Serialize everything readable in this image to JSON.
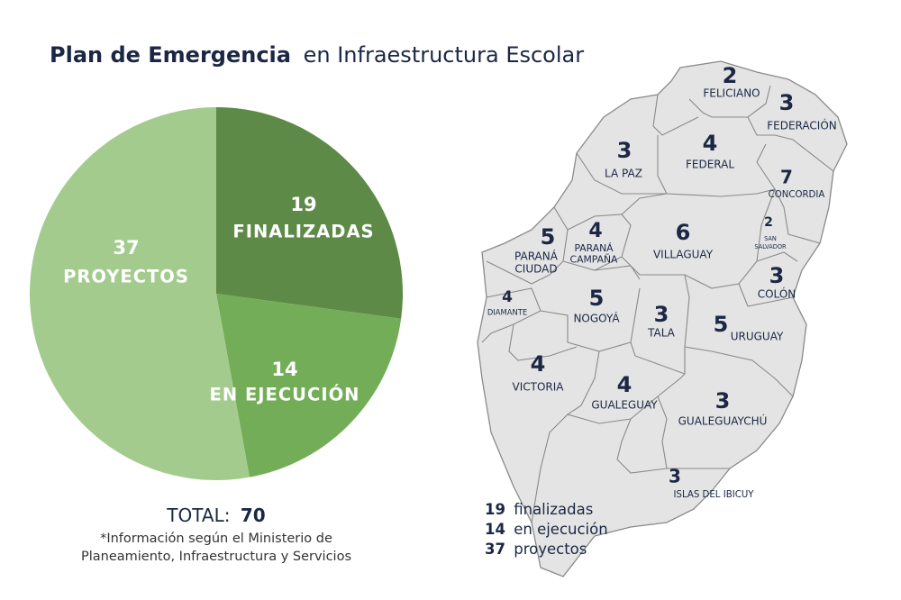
{
  "title": {
    "bold": "Plan de Emergencia",
    "rest": "en Infraestructura Escolar"
  },
  "chart_data": {
    "type": "pie",
    "categories": [
      "FINALIZADAS",
      "EN EJECUCIÓN",
      "PROYECTOS"
    ],
    "values": [
      19,
      14,
      37
    ],
    "colors": [
      "#5e8a48",
      "#74ad58",
      "#a4cb8e"
    ]
  },
  "total": {
    "label": "TOTAL:",
    "value": 70
  },
  "footnote": [
    "*Información según el Ministerio de",
    "Planeamiento, Infraestructura y Servicios"
  ],
  "summary": [
    "finalizadas",
    "en ejecución",
    "proyectos"
  ],
  "map": {
    "departments": [
      {
        "name": [
          "FELICIANO"
        ],
        "count": 2
      },
      {
        "name": [
          "FEDERACIÓN"
        ],
        "count": 3
      },
      {
        "name": [
          "LA PAZ"
        ],
        "count": 3
      },
      {
        "name": [
          "FEDERAL"
        ],
        "count": 4
      },
      {
        "name": [
          "CONCORDIA"
        ],
        "count": 7
      },
      {
        "name": [
          "PARANÁ",
          "CIUDAD"
        ],
        "count": 5
      },
      {
        "name": [
          "PARANÁ",
          "CAMPAÑA"
        ],
        "count": 4
      },
      {
        "name": [
          "VILLAGUAY"
        ],
        "count": 6
      },
      {
        "name": [
          "SAN",
          "SALVADOR"
        ],
        "count": 2
      },
      {
        "name": [
          "COLÓN"
        ],
        "count": 3
      },
      {
        "name": [
          "DIAMANTE"
        ],
        "count": 4
      },
      {
        "name": [
          "NOGOYÁ"
        ],
        "count": 5
      },
      {
        "name": [
          "TALA"
        ],
        "count": 3
      },
      {
        "name": [
          "URUGUAY"
        ],
        "count": 5
      },
      {
        "name": [
          "VICTORIA"
        ],
        "count": 4
      },
      {
        "name": [
          "GUALEGUAY"
        ],
        "count": 4
      },
      {
        "name": [
          "GUALEGUAYCHÚ"
        ],
        "count": 3
      },
      {
        "name": [
          "ISLAS DEL IBICUY"
        ],
        "count": 3
      }
    ]
  }
}
